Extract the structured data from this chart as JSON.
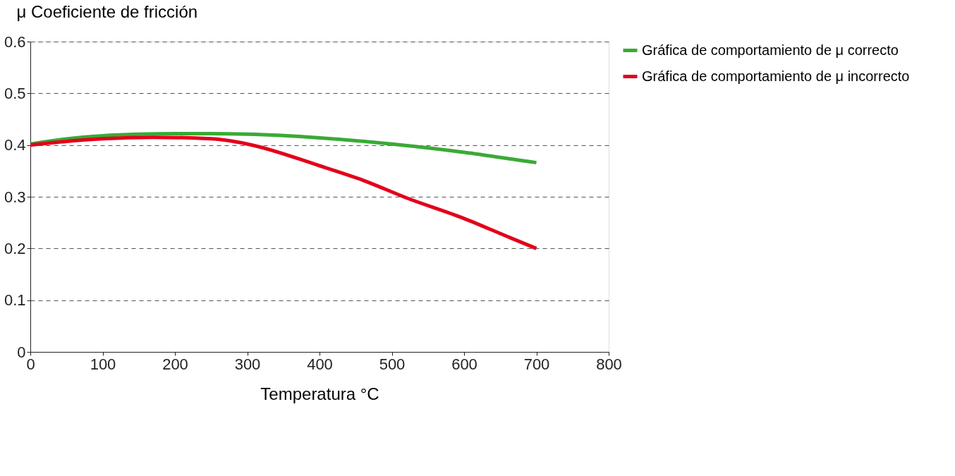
{
  "chart_data": {
    "type": "line",
    "xlabel": "Temperatura °C",
    "ylabel": "μ Coeficiente de fricción",
    "xlim": [
      0,
      800
    ],
    "xticks": [
      0,
      100,
      200,
      300,
      400,
      500,
      600,
      700,
      800
    ],
    "ylim": [
      0,
      0.6
    ],
    "yticks": [
      0,
      0.1,
      0.2,
      0.3,
      0.4,
      0.5,
      0.6
    ],
    "grid": "y",
    "legend": "right",
    "marker": "none",
    "line_style": "solid",
    "series": [
      {
        "name": "Gráfica de comportamiento de μ correcto",
        "color": "#3aaa35",
        "x": [
          0,
          50,
          100,
          150,
          200,
          250,
          300,
          400,
          500,
          600,
          680,
          700
        ],
        "values": [
          0.402,
          0.412,
          0.418,
          0.421,
          0.422,
          0.422,
          0.421,
          0.414,
          0.402,
          0.386,
          0.37,
          0.366
        ]
      },
      {
        "name": "Gráfica de comportamiento de μ incorrecto",
        "color": "#e3001b",
        "x": [
          0,
          50,
          100,
          170,
          250,
          300,
          400,
          460,
          520,
          600,
          665,
          700
        ],
        "values": [
          0.4,
          0.407,
          0.412,
          0.415,
          0.412,
          0.402,
          0.36,
          0.332,
          0.298,
          0.258,
          0.22,
          0.2
        ]
      }
    ]
  }
}
